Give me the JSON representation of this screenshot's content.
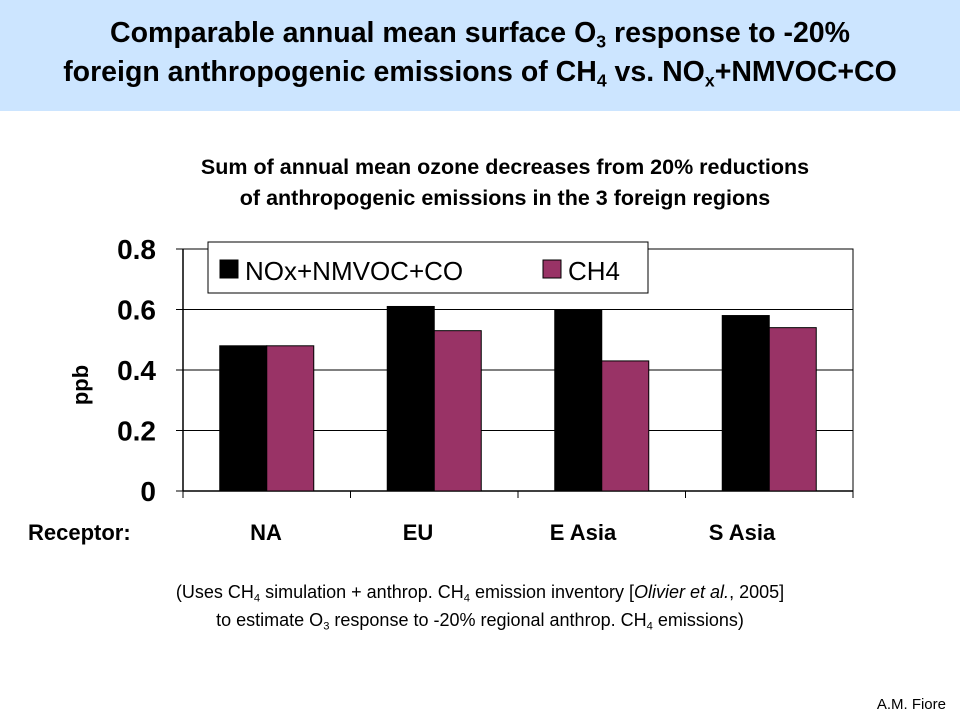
{
  "header": {
    "title_line1_a": "Comparable annual mean surface O",
    "title_line1_sub": "3",
    "title_line1_b": " response to -20%",
    "title_line2_a": "foreign anthropogenic emissions of CH",
    "title_line2_sub1": "4",
    "title_line2_b": " vs. NO",
    "title_line2_sub2": "x",
    "title_line2_c": "+NMVOC+CO",
    "background_color": "#cce5ff"
  },
  "chart_data": {
    "type": "bar",
    "title_line1": "Sum of annual mean ozone decreases from 20% reductions",
    "title_line2": "of anthropogenic emissions in the 3 foreign regions",
    "xlabel": "Receptor:",
    "ylabel": "ppb",
    "categories": [
      "NA",
      "EU",
      "E Asia",
      "S Asia"
    ],
    "series": [
      {
        "name": "NOx+NMVOC+CO",
        "values": [
          0.48,
          0.61,
          0.6,
          0.58
        ],
        "color": "#000000"
      },
      {
        "name": "CH4",
        "values": [
          0.48,
          0.53,
          0.43,
          0.54
        ],
        "color": "#993366"
      }
    ],
    "ylim": [
      0,
      0.8
    ],
    "yticks": [
      0,
      0.2,
      0.4,
      0.6,
      0.8
    ],
    "ytick_labels": [
      "0",
      "0.2",
      "0.4",
      "0.6",
      "0.8"
    ],
    "grid": true,
    "legend_position": "top"
  },
  "footnote": {
    "line1_a": "(Uses CH",
    "line1_sub1": "4",
    "line1_b": " simulation + anthrop. CH",
    "line1_sub2": "4",
    "line1_c": " emission inventory [",
    "line1_italic": "Olivier et al.",
    "line1_d": ", 2005]",
    "line2_a": "to estimate O",
    "line2_sub1": "3",
    "line2_b": " response to -20% regional anthrop. CH",
    "line2_sub2": "4",
    "line2_c": " emissions)"
  },
  "credit": "A.M. Fiore"
}
